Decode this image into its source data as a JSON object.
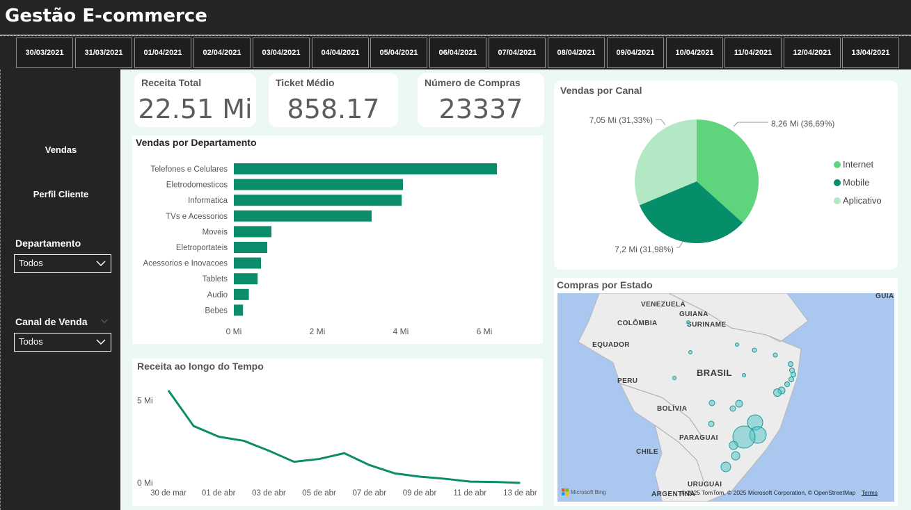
{
  "app": {
    "title": "Gestão E-commerce"
  },
  "dates": [
    "30/03/2021",
    "31/03/2021",
    "01/04/2021",
    "02/04/2021",
    "03/04/2021",
    "04/04/2021",
    "05/04/2021",
    "06/04/2021",
    "07/04/2021",
    "08/04/2021",
    "09/04/2021",
    "10/04/2021",
    "11/04/2021",
    "12/04/2021",
    "13/04/2021"
  ],
  "sidebar": {
    "nav": [
      {
        "label": "Vendas"
      },
      {
        "label": "Perfil Cliente"
      }
    ],
    "filters": [
      {
        "label": "Departamento",
        "value": "Todos"
      },
      {
        "label": "Canal de Venda",
        "value": "Todos"
      }
    ]
  },
  "kpis": [
    {
      "label": "Receita Total",
      "value": "22.51 Mi"
    },
    {
      "label": "Ticket Médio",
      "value": "858.17"
    },
    {
      "label": "Número de Compras",
      "value": "23337"
    }
  ],
  "colors": {
    "accent": "#0b8c6b",
    "pie_internet": "#5ed47c",
    "pie_mobile": "#068d6a",
    "pie_aplicativo": "#b2e9c4"
  },
  "charts": {
    "departamento": {
      "title": "Vendas por Departamento",
      "chart_data": {
        "type": "bar",
        "orientation": "horizontal",
        "categories": [
          "Telefones e Celulares",
          "Eletrodomesticos",
          "Informatica",
          "TVs e Acessorios",
          "Moveis",
          "Eletroportateis",
          "Acessorios e Inovacoes",
          "Tablets",
          "Audio",
          "Bebes"
        ],
        "values": [
          6.3,
          4.05,
          4.02,
          3.3,
          0.9,
          0.8,
          0.65,
          0.57,
          0.36,
          0.22
        ],
        "xticks": [
          "0 Mi",
          "2 Mi",
          "4 Mi",
          "6 Mi"
        ],
        "xlim": [
          0,
          6.9
        ],
        "grid": false
      }
    },
    "tempo": {
      "title": "Receita ao longo do Tempo",
      "chart_data": {
        "type": "line",
        "x": [
          "30 de mar",
          "31 de mar",
          "01 de abr",
          "02 de abr",
          "03 de abr",
          "04 de abr",
          "05 de abr",
          "06 de abr",
          "07 de abr",
          "08 de abr",
          "09 de abr",
          "10 de abr",
          "11 de abr",
          "12 de abr",
          "13 de abr"
        ],
        "values": [
          5.6,
          3.45,
          2.8,
          2.55,
          1.95,
          1.28,
          1.45,
          1.8,
          1.08,
          0.58,
          0.38,
          0.25,
          0.08,
          0.06,
          0.0
        ],
        "xticks": [
          "30 de mar",
          "01 de abr",
          "03 de abr",
          "05 de abr",
          "07 de abr",
          "09 de abr",
          "11 de abr",
          "13 de abr"
        ],
        "yticks": [
          "0 Mi",
          "5 Mi"
        ],
        "ylim": [
          0,
          5.6
        ],
        "grid": false
      }
    },
    "canal": {
      "title": "Vendas por Canal",
      "chart_data": {
        "type": "pie",
        "slices": [
          {
            "name": "Internet",
            "value": 8.26,
            "label": "8,26 Mi (36,69%)"
          },
          {
            "name": "Mobile",
            "value": 7.2,
            "label": "7,2 Mi (31,98%)"
          },
          {
            "name": "Aplicativo",
            "value": 7.05,
            "label": "7,05 Mi (31,33%)"
          }
        ],
        "legend": "right"
      }
    },
    "estado": {
      "title": "Compras por Estado",
      "labels": [
        "VENEZUELA",
        "GUIANA",
        "COLÔMBIA",
        "SURINAME",
        "EQUADOR",
        "BRASIL",
        "PERU",
        "BOLÍVIA",
        "PARAGUAI",
        "CHILE",
        "URUGUAI",
        "ARGENTINA",
        "GUIA"
      ],
      "attribution": "© 2025 TomTom, © 2025 Microsoft Corporation, © OpenStreetMap",
      "terms": "Terms",
      "bing": "Microsoft Bing"
    }
  }
}
